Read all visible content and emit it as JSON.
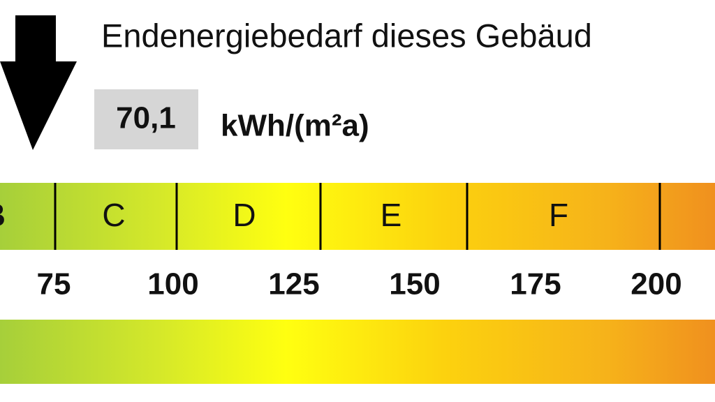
{
  "header": {
    "title": "Endenergiebedarf dieses Gebäud"
  },
  "value": {
    "text": "70,1",
    "unit": "kWh/(m²a)"
  },
  "scale": {
    "classes": [
      "B",
      "C",
      "D",
      "E",
      "F"
    ],
    "ticks": [
      "75",
      "100",
      "125",
      "150",
      "175",
      "200"
    ]
  }
}
